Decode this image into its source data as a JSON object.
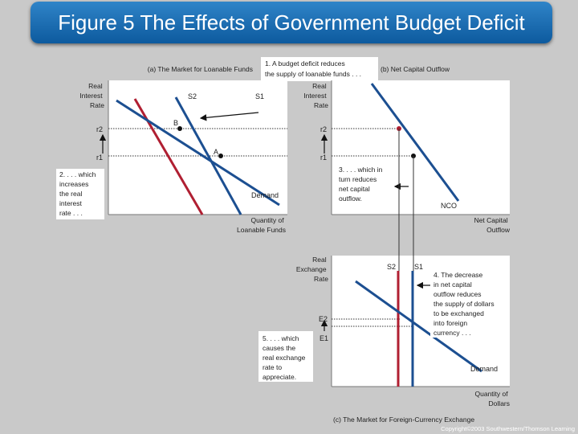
{
  "title": "Figure 5 The Effects of Government Budget Deficit",
  "colors": {
    "red": "#b01f32",
    "blue": "#1c4f91",
    "title_bg": "#1a6db5"
  },
  "panel_a": {
    "title": "(a) The Market for Loanable Funds",
    "y_label": [
      "Real",
      "Interest",
      "Rate"
    ],
    "x_label": [
      "Quantity of",
      "Loanable Funds"
    ],
    "r2": "r2",
    "r1": "r1",
    "s2": "S2",
    "s1": "S1",
    "point_b": "B",
    "point_a": "A",
    "demand": "Demand",
    "note_deficit": [
      "1. A budget deficit reduces",
      "the supply of loanable funds . . ."
    ],
    "note_increase": [
      "2. . . . which",
      "increases",
      "the real",
      "interest",
      "rate . . ."
    ]
  },
  "panel_b": {
    "title": "(b) Net Capital Outflow",
    "y_label": [
      "Real",
      "Interest",
      "Rate"
    ],
    "x_label": [
      "Net Capital",
      "Outflow"
    ],
    "r2": "r2",
    "r1": "r1",
    "nco": "NCO",
    "note_reduces": [
      "3. . . . which in",
      "turn reduces",
      "net capital",
      "outflow."
    ]
  },
  "panel_c": {
    "title": "(c) The Market for Foreign-Currency Exchange",
    "y_label": [
      "Real",
      "Exchange",
      "Rate"
    ],
    "x_label": [
      "Quantity of",
      "Dollars"
    ],
    "s2": "S2",
    "s1": "S1",
    "e2": "E2",
    "e1": "E1",
    "demand": "Demand",
    "note_decrease": [
      "4. The decrease",
      "in net capital",
      "outflow reduces",
      "the supply of dollars",
      "to be exchanged",
      "into foreign",
      "currency . . ."
    ],
    "note_appreciate": [
      "5. . . . which",
      "causes the",
      "real exchange",
      "rate to",
      "appreciate."
    ]
  },
  "copyright": "Copyright©2003  Southwestern/Thomson Learning"
}
